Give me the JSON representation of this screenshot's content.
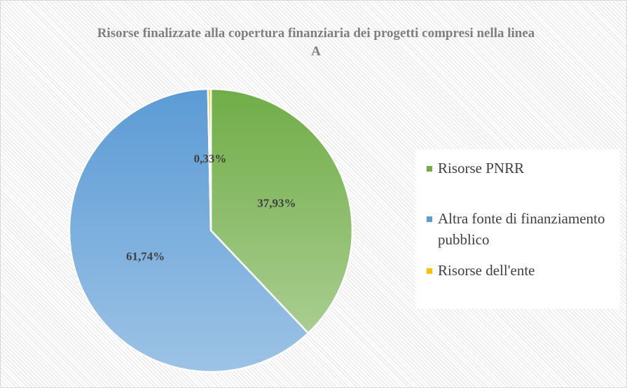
{
  "chart_data": {
    "type": "pie",
    "title": "Risorse finalizzate alla copertura finanziaria dei progetti compresi nella linea A",
    "categories": [
      "Risorse PNRR",
      "Altra fonte di finanziamento pubblico",
      "Risorse dell'ente"
    ],
    "values": [
      37.93,
      61.74,
      0.33
    ],
    "value_labels": [
      "37,93%",
      "61,74%",
      "0,33%"
    ],
    "colors": [
      "#70ad47",
      "#5b9bd5",
      "#ffc000"
    ],
    "legend": "right"
  }
}
